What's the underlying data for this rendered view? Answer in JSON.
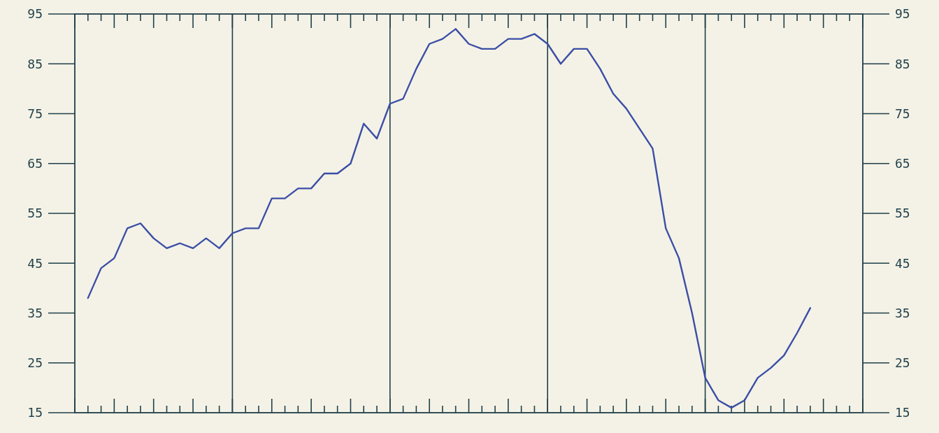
{
  "chart_data": {
    "type": "line",
    "categories": [
      null,
      null,
      null,
      null,
      null,
      null,
      null,
      null,
      null,
      null,
      null,
      null,
      null,
      null,
      null,
      null,
      null,
      null,
      null,
      null,
      null,
      null,
      null,
      null,
      null,
      null,
      null,
      null,
      null,
      null,
      null,
      null,
      null,
      null,
      null,
      null,
      null,
      null,
      null,
      null,
      null,
      null,
      null,
      null,
      null,
      null,
      null,
      null,
      null,
      null,
      null,
      null,
      null,
      null,
      null,
      null,
      null,
      null,
      null,
      null,
      null
    ],
    "series": [
      {
        "color": "#3a4ea6",
        "values": [
          null,
          38,
          44,
          46,
          52,
          53,
          50,
          48,
          49,
          48,
          50,
          48,
          51,
          52,
          52,
          58,
          58,
          60,
          60,
          63,
          63,
          65,
          73,
          70,
          77,
          78,
          84,
          89,
          90,
          92,
          89,
          88,
          88,
          90,
          90,
          91,
          89,
          85,
          88,
          88,
          84,
          79,
          76,
          72,
          68,
          52,
          46,
          35,
          22,
          17.5,
          16,
          17.5,
          22,
          24,
          26.5,
          31,
          36,
          null,
          null,
          null,
          null
        ]
      }
    ],
    "ylim": [
      15,
      95
    ],
    "yticks": [
      15,
      25,
      35,
      45,
      55,
      65,
      75,
      85,
      95
    ],
    "y2lim": [
      15,
      95
    ],
    "y2ticks": [
      15,
      25,
      35,
      45,
      55,
      65,
      75,
      85,
      95
    ],
    "grid": "x",
    "marker": "none",
    "line_style": "solid"
  }
}
